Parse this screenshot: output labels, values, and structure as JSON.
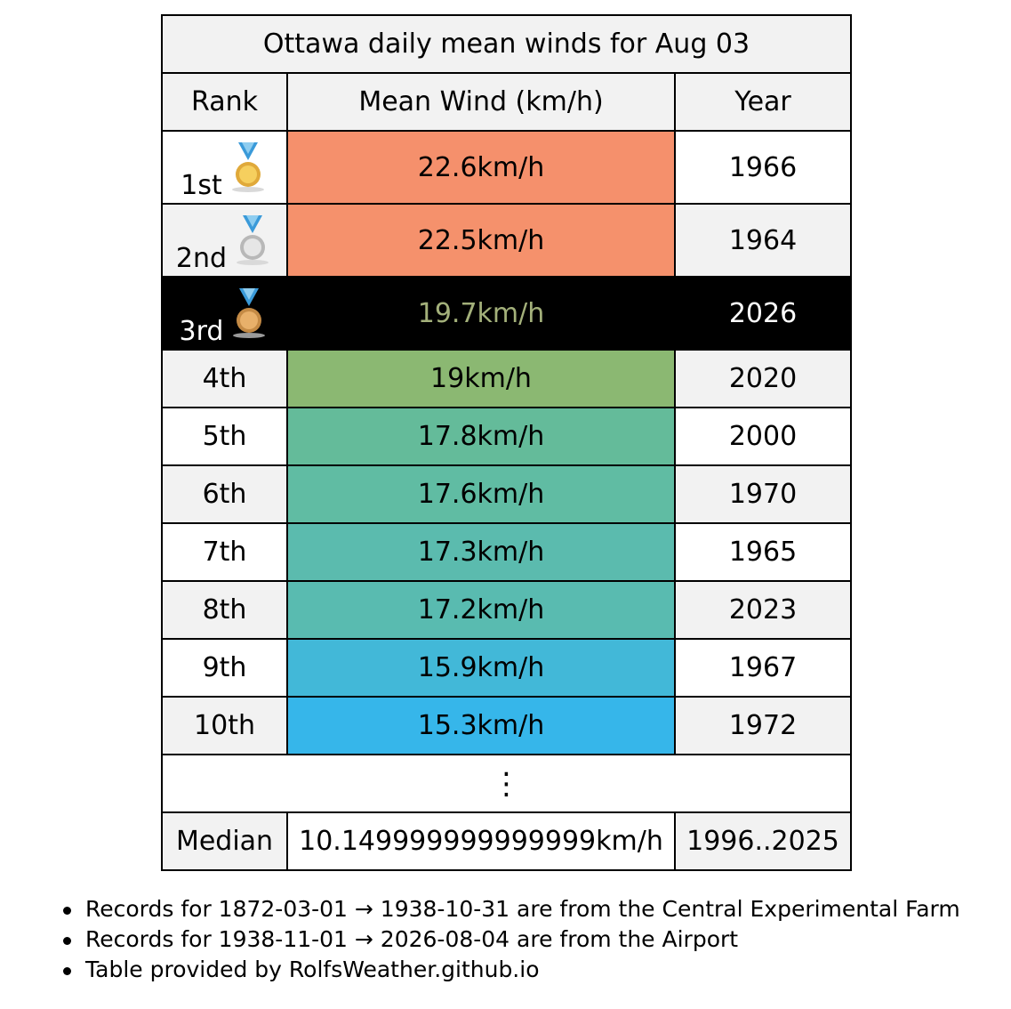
{
  "table": {
    "title": "Ottawa daily mean winds for Aug 03",
    "headers": {
      "rank": "Rank",
      "wind": "Mean Wind (km/h)",
      "year": "Year"
    },
    "rows": [
      {
        "rank": "1st",
        "wind": "22.6km/h",
        "year": "1966",
        "color": "#f5906c",
        "rank_bg": "#ffffff",
        "year_bg": "#ffffff",
        "medal": "gold-medal-icon"
      },
      {
        "rank": "2nd",
        "wind": "22.5km/h",
        "year": "1964",
        "color": "#f5916c",
        "rank_bg": "#f2f2f2",
        "year_bg": "#f2f2f2",
        "medal": "silver-medal-icon"
      },
      {
        "rank": "3rd",
        "wind": "19.7km/h",
        "year": "2026",
        "color": "#000000",
        "rank_bg": "#000000",
        "year_bg": "#000000",
        "medal": "bronze-medal-icon",
        "highlight": true
      },
      {
        "rank": "4th",
        "wind": "19km/h",
        "year": "2020",
        "color": "#8bb872",
        "rank_bg": "#f2f2f2",
        "year_bg": "#f2f2f2"
      },
      {
        "rank": "5th",
        "wind": "17.8km/h",
        "year": "2000",
        "color": "#64bb9a",
        "rank_bg": "#ffffff",
        "year_bg": "#ffffff"
      },
      {
        "rank": "6th",
        "wind": "17.6km/h",
        "year": "1970",
        "color": "#60bca3",
        "rank_bg": "#f2f2f2",
        "year_bg": "#f2f2f2"
      },
      {
        "rank": "7th",
        "wind": "17.3km/h",
        "year": "1965",
        "color": "#5bbbae",
        "rank_bg": "#ffffff",
        "year_bg": "#ffffff"
      },
      {
        "rank": "8th",
        "wind": "17.2km/h",
        "year": "2023",
        "color": "#59bbb0",
        "rank_bg": "#f2f2f2",
        "year_bg": "#f2f2f2"
      },
      {
        "rank": "9th",
        "wind": "15.9km/h",
        "year": "1967",
        "color": "#42b8d8",
        "rank_bg": "#ffffff",
        "year_bg": "#ffffff"
      },
      {
        "rank": "10th",
        "wind": "15.3km/h",
        "year": "1972",
        "color": "#36b6ea",
        "rank_bg": "#f2f2f2",
        "year_bg": "#f2f2f2"
      }
    ],
    "ellipsis": "⋮",
    "median": {
      "label": "Median",
      "wind": "10.149999999999999km/h",
      "years": "1996..2025",
      "bg": "#f2f2f2",
      "wind_bg": "#ffffff"
    }
  },
  "notes": [
    "Records for 1872-03-01 → 1938-10-31 are from the Central Experimental Farm",
    "Records for 1938-11-01 → 2026-08-04 are from the Airport",
    "Table provided by RolfsWeather.github.io"
  ]
}
